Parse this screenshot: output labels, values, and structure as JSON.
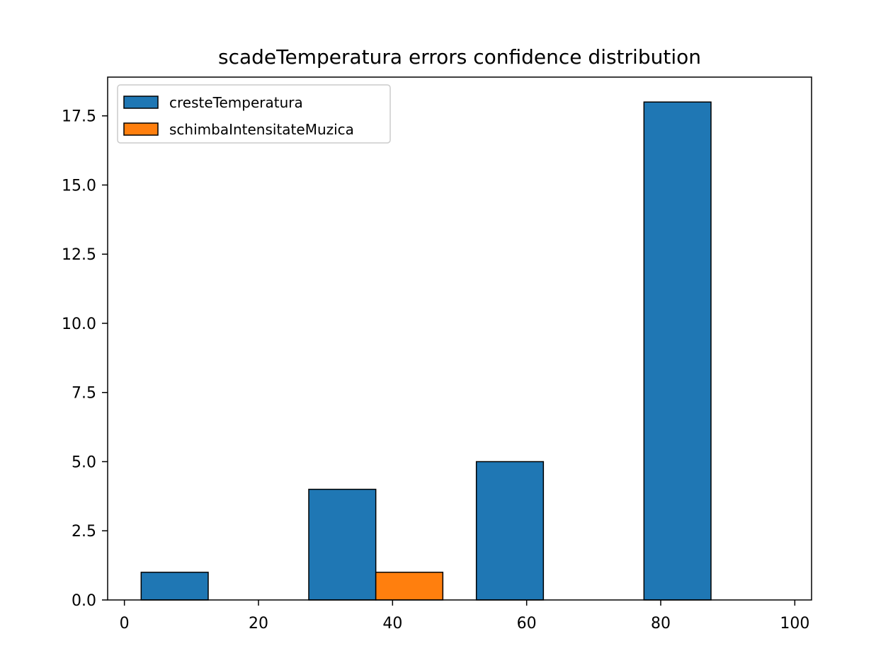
{
  "chart_data": {
    "type": "bar",
    "title": "scadeTemperatura errors confidence distribution",
    "xlabel": "",
    "ylabel": "",
    "xlim": [
      -2.5,
      102.5
    ],
    "ylim": [
      0,
      18.9
    ],
    "x_ticks": [
      0,
      20,
      40,
      60,
      80,
      100
    ],
    "x_tick_labels": [
      "0",
      "20",
      "40",
      "60",
      "80",
      "100"
    ],
    "y_ticks": [
      0,
      2.5,
      5,
      7.5,
      10,
      12.5,
      15,
      17.5
    ],
    "y_tick_labels": [
      "0.0",
      "2.5",
      "5.0",
      "7.5",
      "10.0",
      "12.5",
      "15.0",
      "17.5"
    ],
    "bins": [
      [
        2.5,
        12.5
      ],
      [
        12.5,
        22.5
      ],
      [
        27.5,
        37.5
      ],
      [
        37.5,
        47.5
      ],
      [
        52.5,
        62.5
      ],
      [
        62.5,
        72.5
      ],
      [
        77.5,
        87.5
      ],
      [
        87.5,
        97.5
      ]
    ],
    "series": [
      {
        "name": "cresteTemperatura",
        "color": "#1f77b4",
        "bars": [
          {
            "x0": 2.5,
            "x1": 12.5,
            "value": 1
          },
          {
            "x0": 27.5,
            "x1": 37.5,
            "value": 4
          },
          {
            "x0": 52.5,
            "x1": 62.5,
            "value": 5
          },
          {
            "x0": 77.5,
            "x1": 87.5,
            "value": 18
          }
        ]
      },
      {
        "name": "schimbaIntensitateMuzica",
        "color": "#ff7f0e",
        "bars": [
          {
            "x0": 12.5,
            "x1": 22.5,
            "value": 0
          },
          {
            "x0": 37.5,
            "x1": 47.5,
            "value": 1
          },
          {
            "x0": 62.5,
            "x1": 72.5,
            "value": 0
          },
          {
            "x0": 87.5,
            "x1": 97.5,
            "value": 0
          }
        ]
      }
    ],
    "grid": false,
    "legend_position": "upper-left"
  }
}
